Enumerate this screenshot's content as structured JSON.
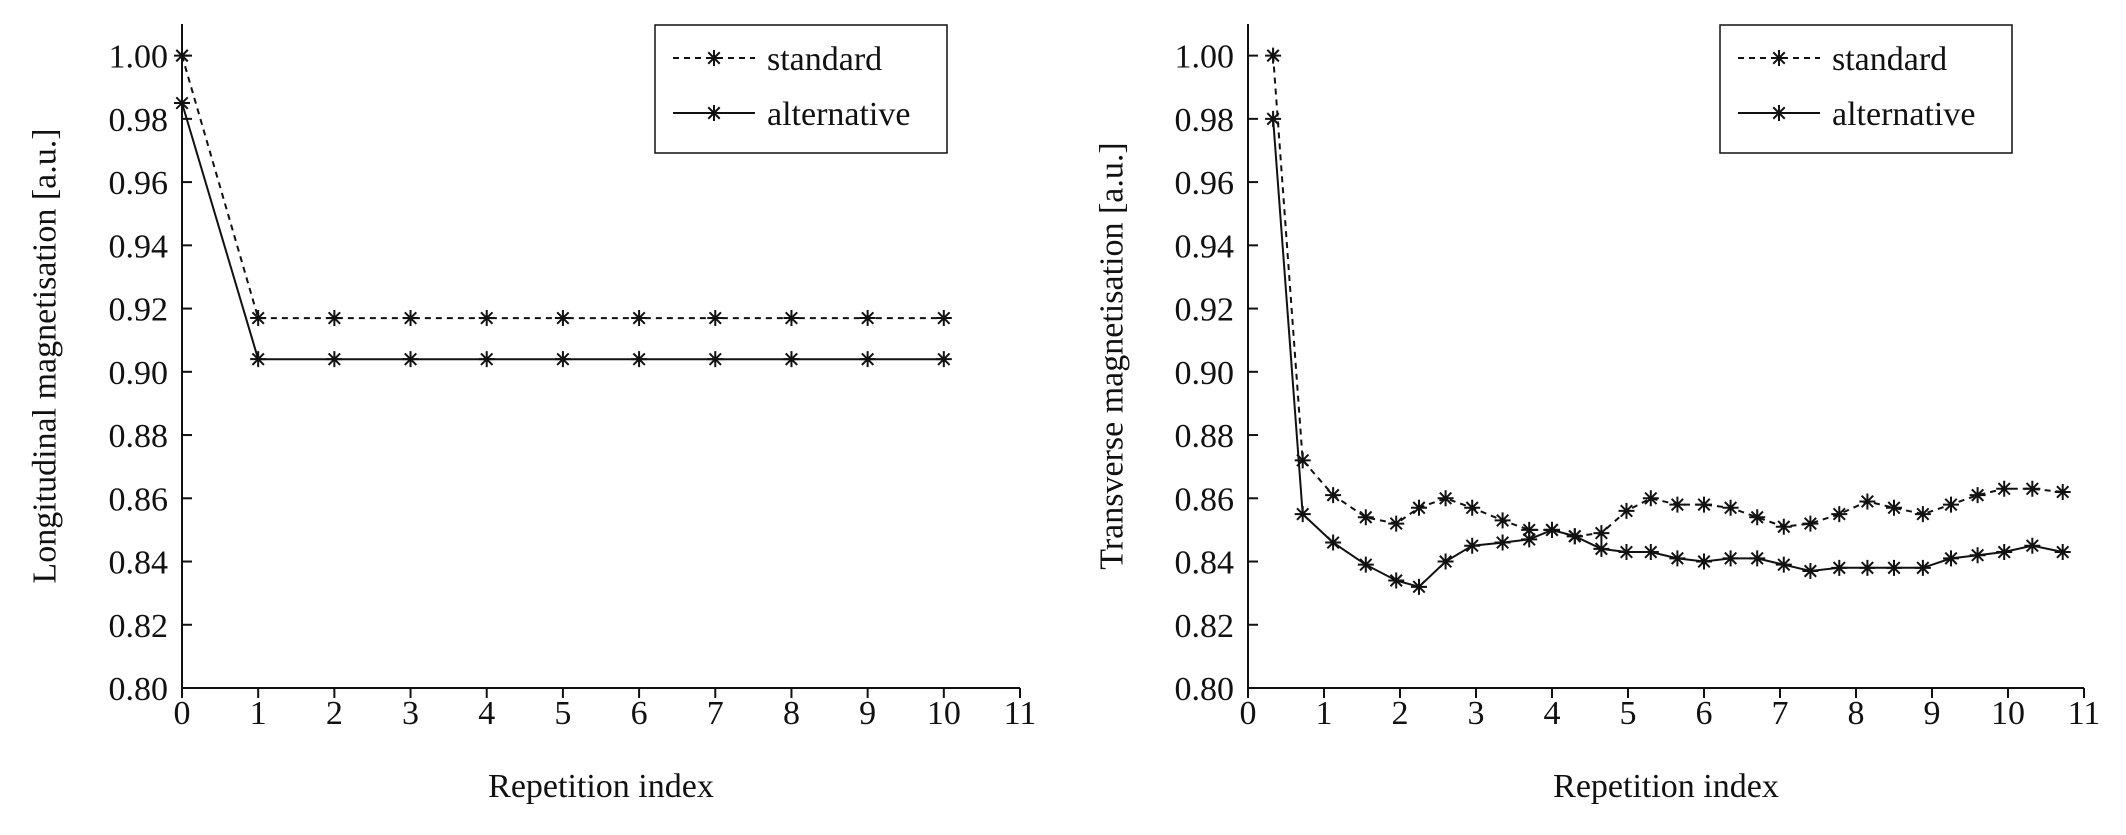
{
  "chart_data": [
    {
      "type": "line",
      "xlabel": "Repetition index",
      "ylabel": "Longitudinal magnetisation [a.u.]",
      "xlim": [
        0,
        11
      ],
      "ylim": [
        0.8,
        1.01
      ],
      "xticks": [
        0,
        1,
        2,
        3,
        4,
        5,
        6,
        7,
        8,
        9,
        10,
        11
      ],
      "xtick_labels": [
        "0",
        "1",
        "2",
        "3",
        "4",
        "5",
        "6",
        "7",
        "8",
        "9",
        "10",
        "11"
      ],
      "yticks": [
        0.8,
        0.82,
        0.84,
        0.86,
        0.88,
        0.9,
        0.92,
        0.94,
        0.96,
        0.98,
        1.0
      ],
      "ytick_labels": [
        "0.80",
        "0.82",
        "0.84",
        "0.86",
        "0.88",
        "0.90",
        "0.92",
        "0.94",
        "0.96",
        "0.98",
        "1.00"
      ],
      "grid": false,
      "legend": "top-right",
      "series": [
        {
          "name": "standard",
          "style": "dashed",
          "marker": "asterisk",
          "x": [
            0,
            1,
            2,
            3,
            4,
            5,
            6,
            7,
            8,
            9,
            10
          ],
          "y": [
            1.0,
            0.917,
            0.917,
            0.917,
            0.917,
            0.917,
            0.917,
            0.917,
            0.917,
            0.917,
            0.917
          ]
        },
        {
          "name": "alternative",
          "style": "solid",
          "marker": "asterisk",
          "x": [
            0,
            1,
            2,
            3,
            4,
            5,
            6,
            7,
            8,
            9,
            10
          ],
          "y": [
            0.985,
            0.904,
            0.904,
            0.904,
            0.904,
            0.904,
            0.904,
            0.904,
            0.904,
            0.904,
            0.904
          ]
        }
      ]
    },
    {
      "type": "line",
      "xlabel": "Repetition index",
      "ylabel": "Transverse magnetisation [a.u.]",
      "xlim": [
        0,
        11
      ],
      "ylim": [
        0.8,
        1.01
      ],
      "xticks": [
        0,
        1,
        2,
        3,
        4,
        5,
        6,
        7,
        8,
        9,
        10,
        11
      ],
      "xtick_labels": [
        "0",
        "1",
        "2",
        "3",
        "4",
        "5",
        "6",
        "7",
        "8",
        "9",
        "10",
        "11"
      ],
      "yticks": [
        0.8,
        0.82,
        0.84,
        0.86,
        0.88,
        0.9,
        0.92,
        0.94,
        0.96,
        0.98,
        1.0
      ],
      "ytick_labels": [
        "0.80",
        "0.82",
        "0.84",
        "0.86",
        "0.88",
        "0.90",
        "0.92",
        "0.94",
        "0.96",
        "0.98",
        "1.00"
      ],
      "grid": false,
      "legend": "top-right",
      "series": [
        {
          "name": "standard",
          "style": "dashed",
          "marker": "asterisk",
          "x": [
            0.33,
            0.72,
            1.12,
            1.55,
            1.95,
            2.25,
            2.6,
            2.95,
            3.35,
            3.7,
            4.0,
            4.3,
            4.65,
            4.98,
            5.3,
            5.65,
            6.0,
            6.35,
            6.7,
            7.05,
            7.4,
            7.78,
            8.15,
            8.5,
            8.88,
            9.25,
            9.6,
            9.95,
            10.32,
            10.72
          ],
          "y": [
            1.0,
            0.872,
            0.861,
            0.854,
            0.852,
            0.857,
            0.86,
            0.857,
            0.853,
            0.85,
            0.85,
            0.848,
            0.849,
            0.856,
            0.86,
            0.858,
            0.858,
            0.857,
            0.854,
            0.851,
            0.852,
            0.855,
            0.859,
            0.857,
            0.855,
            0.858,
            0.861,
            0.863,
            0.863,
            0.862
          ]
        },
        {
          "name": "alternative",
          "style": "solid",
          "marker": "asterisk",
          "x": [
            0.33,
            0.72,
            1.12,
            1.55,
            1.95,
            2.25,
            2.6,
            2.95,
            3.35,
            3.7,
            4.0,
            4.3,
            4.65,
            4.98,
            5.3,
            5.65,
            6.0,
            6.35,
            6.7,
            7.05,
            7.4,
            7.78,
            8.15,
            8.5,
            8.88,
            9.25,
            9.6,
            9.95,
            10.32,
            10.72
          ],
          "y": [
            0.98,
            0.855,
            0.846,
            0.839,
            0.834,
            0.832,
            0.84,
            0.845,
            0.846,
            0.847,
            0.85,
            0.848,
            0.844,
            0.843,
            0.843,
            0.841,
            0.84,
            0.841,
            0.841,
            0.839,
            0.837,
            0.838,
            0.838,
            0.838,
            0.838,
            0.841,
            0.842,
            0.843,
            0.845,
            0.843
          ]
        }
      ]
    }
  ]
}
